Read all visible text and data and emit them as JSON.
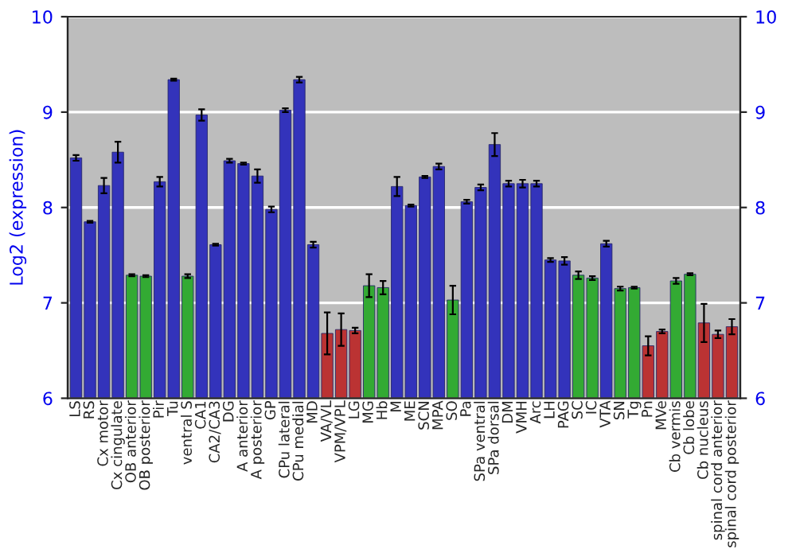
{
  "chart_data": {
    "type": "bar",
    "ylabel": "Log2 (expression)",
    "categories": [
      "LS",
      "RS",
      "Cx motor",
      "Cx cingulate",
      "OB anterior",
      "OB posterior",
      "Pir",
      "Tu",
      "ventral S",
      "CA1",
      "CA2/CA3",
      "DG",
      "A anterior",
      "A posterior",
      "GP",
      "CPu lateral",
      "CPu medial",
      "MD",
      "VA/VL",
      "VPM/VPL",
      "LG",
      "MG",
      "Hb",
      "M",
      "ME",
      "SCN",
      "MPA",
      "SO",
      "Pa",
      "SPa ventral",
      "SPa dorsal",
      "DM",
      "VMH",
      "Arc",
      "LH",
      "PAG",
      "SC",
      "IC",
      "VTA",
      "SN",
      "Tg",
      "Pn",
      "MVe",
      "Cb vermis",
      "Cb lobe",
      "Cb nucleus",
      "spinal cord anterior",
      "spinal cord posterior"
    ],
    "values": [
      8.52,
      7.85,
      8.23,
      8.58,
      7.29,
      7.28,
      8.27,
      9.34,
      7.28,
      8.97,
      7.61,
      8.49,
      8.46,
      8.33,
      7.98,
      9.02,
      9.34,
      7.61,
      6.68,
      6.72,
      6.71,
      7.18,
      7.16,
      8.22,
      8.02,
      8.32,
      8.43,
      7.03,
      8.06,
      8.21,
      8.66,
      8.25,
      8.25,
      8.25,
      7.45,
      7.44,
      7.29,
      7.26,
      7.62,
      7.15,
      7.16,
      6.55,
      6.7,
      7.23,
      7.3,
      6.79,
      6.67,
      6.75
    ],
    "errors": [
      0.03,
      0.01,
      0.08,
      0.11,
      0.01,
      0.01,
      0.05,
      0.01,
      0.02,
      0.06,
      0.01,
      0.02,
      0.01,
      0.07,
      0.03,
      0.02,
      0.03,
      0.03,
      0.22,
      0.17,
      0.03,
      0.12,
      0.07,
      0.1,
      0.01,
      0.01,
      0.03,
      0.15,
      0.02,
      0.03,
      0.12,
      0.03,
      0.04,
      0.03,
      0.02,
      0.04,
      0.04,
      0.02,
      0.03,
      0.02,
      0.01,
      0.1,
      0.02,
      0.03,
      0.01,
      0.2,
      0.04,
      0.08
    ],
    "colors": [
      "#3333bb",
      "#3333bb",
      "#3333bb",
      "#3333bb",
      "#33aa33",
      "#33aa33",
      "#3333bb",
      "#3333bb",
      "#33aa33",
      "#3333bb",
      "#3333bb",
      "#3333bb",
      "#3333bb",
      "#3333bb",
      "#3333bb",
      "#3333bb",
      "#3333bb",
      "#3333bb",
      "#bb3333",
      "#bb3333",
      "#bb3333",
      "#33aa33",
      "#33aa33",
      "#3333bb",
      "#3333bb",
      "#3333bb",
      "#3333bb",
      "#33aa33",
      "#3333bb",
      "#3333bb",
      "#3333bb",
      "#3333bb",
      "#3333bb",
      "#3333bb",
      "#3333bb",
      "#3333bb",
      "#33aa33",
      "#33aa33",
      "#3333bb",
      "#33aa33",
      "#33aa33",
      "#bb3333",
      "#bb3333",
      "#33aa33",
      "#33aa33",
      "#bb3333",
      "#bb3333",
      "#bb3333"
    ],
    "ylim": [
      6,
      10
    ],
    "yticks": [
      6,
      7,
      8,
      9,
      10
    ],
    "y2lim": [
      6,
      10
    ],
    "y2ticks": [
      6,
      7,
      8,
      9,
      10
    ],
    "grid": "y",
    "legend": false
  }
}
